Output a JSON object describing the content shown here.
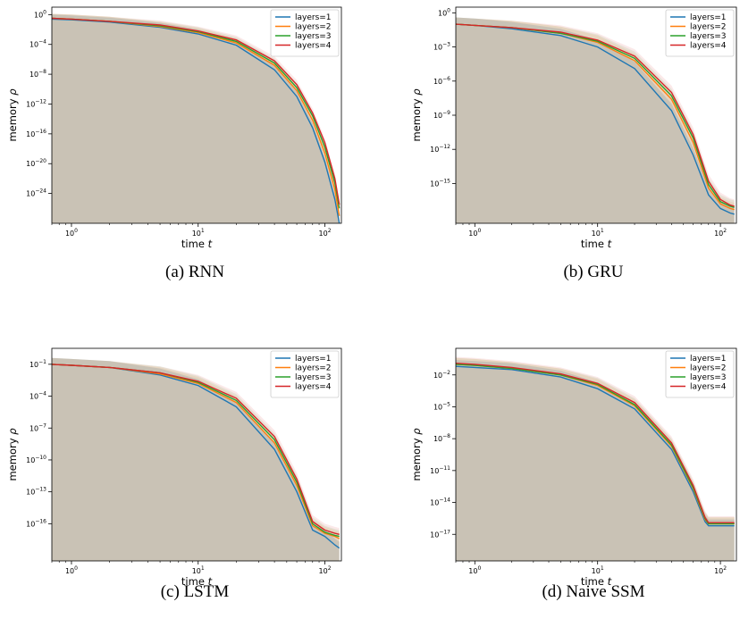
{
  "chart_data": [
    {
      "panel": "RNN",
      "caption": "(a) RNN",
      "type": "line",
      "xscale": "log",
      "yscale": "log",
      "xlim": [
        0.7,
        135
      ],
      "ylim_exp": [
        -28,
        1
      ],
      "xlabel": "time t",
      "ylabel": "memory ρ",
      "xticks": [
        {
          "exp": 0,
          "label": "10^0"
        },
        {
          "exp": 1,
          "label": "10^1"
        },
        {
          "exp": 2,
          "label": "10^2"
        }
      ],
      "yticks": [
        0,
        -4,
        -8,
        -12,
        -16,
        -20,
        -24
      ],
      "legend_position": "top-right",
      "series": [
        {
          "name": "layers=1",
          "color": "#1f77b4",
          "x": [
            0.7,
            1,
            2,
            5,
            10,
            20,
            40,
            60,
            80,
            100,
            120,
            130
          ],
          "log10_y": [
            -0.6,
            -0.7,
            -1.0,
            -1.7,
            -2.6,
            -4.1,
            -7.4,
            -11.0,
            -15.2,
            -19.8,
            -24.8,
            -28.0
          ]
        },
        {
          "name": "layers=2",
          "color": "#ff7f0e",
          "x": [
            0.7,
            1,
            2,
            5,
            10,
            20,
            40,
            60,
            80,
            100,
            120,
            130
          ],
          "log10_y": [
            -0.5,
            -0.6,
            -0.9,
            -1.6,
            -2.4,
            -3.8,
            -6.8,
            -10.2,
            -14.2,
            -18.6,
            -23.5,
            -27.0
          ]
        },
        {
          "name": "layers=3",
          "color": "#2ca02c",
          "x": [
            0.7,
            1,
            2,
            5,
            10,
            20,
            40,
            60,
            80,
            100,
            120,
            130
          ],
          "log10_y": [
            -0.5,
            -0.6,
            -0.9,
            -1.5,
            -2.3,
            -3.6,
            -6.5,
            -9.8,
            -13.6,
            -17.8,
            -22.6,
            -26.0
          ]
        },
        {
          "name": "layers=4",
          "color": "#d62728",
          "x": [
            0.7,
            1,
            2,
            5,
            10,
            20,
            40,
            60,
            80,
            100,
            120,
            130
          ],
          "log10_y": [
            -0.5,
            -0.6,
            -0.9,
            -1.4,
            -2.2,
            -3.4,
            -6.2,
            -9.4,
            -13.2,
            -17.2,
            -22.0,
            -25.5
          ]
        }
      ]
    },
    {
      "panel": "GRU",
      "caption": "(b) GRU",
      "type": "line",
      "xscale": "log",
      "yscale": "log",
      "xlim": [
        0.7,
        135
      ],
      "ylim_exp": [
        -18.5,
        0.5
      ],
      "xlabel": "time t",
      "ylabel": "memory ρ",
      "xticks": [
        {
          "exp": 0,
          "label": "10^0"
        },
        {
          "exp": 1,
          "label": "10^1"
        },
        {
          "exp": 2,
          "label": "10^2"
        }
      ],
      "yticks": [
        0,
        -3,
        -6,
        -9,
        -12,
        -15
      ],
      "legend_position": "top-right",
      "series": [
        {
          "name": "layers=1",
          "color": "#1f77b4",
          "x": [
            0.7,
            1,
            2,
            5,
            10,
            20,
            40,
            60,
            80,
            100,
            120,
            130
          ],
          "log10_y": [
            -1.0,
            -1.1,
            -1.4,
            -2.0,
            -3.0,
            -4.9,
            -8.6,
            -12.5,
            -16.0,
            -17.2,
            -17.6,
            -17.7
          ]
        },
        {
          "name": "layers=2",
          "color": "#ff7f0e",
          "x": [
            0.7,
            1,
            2,
            5,
            10,
            20,
            40,
            60,
            80,
            100,
            120,
            130
          ],
          "log10_y": [
            -1.0,
            -1.1,
            -1.3,
            -1.8,
            -2.6,
            -4.2,
            -7.6,
            -11.4,
            -15.4,
            -16.8,
            -17.2,
            -17.3
          ]
        },
        {
          "name": "layers=3",
          "color": "#2ca02c",
          "x": [
            0.7,
            1,
            2,
            5,
            10,
            20,
            40,
            60,
            80,
            100,
            120,
            130
          ],
          "log10_y": [
            -1.0,
            -1.1,
            -1.3,
            -1.8,
            -2.5,
            -4.0,
            -7.3,
            -11.0,
            -15.1,
            -16.6,
            -17.0,
            -17.1
          ]
        },
        {
          "name": "layers=4",
          "color": "#d62728",
          "x": [
            0.7,
            1,
            2,
            5,
            10,
            20,
            40,
            60,
            80,
            100,
            120,
            130
          ],
          "log10_y": [
            -1.0,
            -1.1,
            -1.3,
            -1.7,
            -2.4,
            -3.8,
            -7.0,
            -10.7,
            -14.8,
            -16.4,
            -16.9,
            -17.0
          ]
        }
      ]
    },
    {
      "panel": "LSTM",
      "caption": "(c) LSTM",
      "type": "line",
      "xscale": "log",
      "yscale": "log",
      "xlim": [
        0.7,
        135
      ],
      "ylim_exp": [
        -19.5,
        0.5
      ],
      "xlabel": "time t",
      "ylabel": "memory ρ",
      "xticks": [
        {
          "exp": 0,
          "label": "10^0"
        },
        {
          "exp": 1,
          "label": "10^1"
        },
        {
          "exp": 2,
          "label": "10^2"
        }
      ],
      "yticks": [
        -1,
        -4,
        -7,
        -10,
        -13,
        -16
      ],
      "legend_position": "top-right",
      "series": [
        {
          "name": "layers=1",
          "color": "#1f77b4",
          "x": [
            0.7,
            1,
            2,
            5,
            10,
            20,
            40,
            60,
            80,
            100,
            120,
            130
          ],
          "log10_y": [
            -1.0,
            -1.1,
            -1.3,
            -2.0,
            -3.0,
            -5.0,
            -9.0,
            -13.0,
            -16.6,
            -17.2,
            -18.0,
            -18.3
          ]
        },
        {
          "name": "layers=2",
          "color": "#ff7f0e",
          "x": [
            0.7,
            1,
            2,
            5,
            10,
            20,
            40,
            60,
            80,
            100,
            120,
            130
          ],
          "log10_y": [
            -1.0,
            -1.1,
            -1.3,
            -1.9,
            -2.8,
            -4.6,
            -8.4,
            -12.4,
            -16.2,
            -16.9,
            -17.2,
            -17.4
          ]
        },
        {
          "name": "layers=3",
          "color": "#2ca02c",
          "x": [
            0.7,
            1,
            2,
            5,
            10,
            20,
            40,
            60,
            80,
            100,
            120,
            130
          ],
          "log10_y": [
            -1.0,
            -1.1,
            -1.3,
            -1.8,
            -2.7,
            -4.4,
            -8.1,
            -12.1,
            -16.0,
            -16.8,
            -17.1,
            -17.2
          ]
        },
        {
          "name": "layers=4",
          "color": "#d62728",
          "x": [
            0.7,
            1,
            2,
            5,
            10,
            20,
            40,
            60,
            80,
            100,
            120,
            130
          ],
          "log10_y": [
            -1.0,
            -1.1,
            -1.3,
            -1.8,
            -2.6,
            -4.2,
            -7.8,
            -11.8,
            -15.8,
            -16.6,
            -16.9,
            -17.0
          ]
        }
      ]
    },
    {
      "panel": "Naive SSM",
      "caption": "(d) Naive SSM",
      "type": "line",
      "xscale": "log",
      "yscale": "log",
      "xlim": [
        0.7,
        135
      ],
      "ylim_exp": [
        -19.5,
        0.5
      ],
      "xlabel": "time t",
      "ylabel": "memory ρ",
      "xticks": [
        {
          "exp": 0,
          "label": "10^0"
        },
        {
          "exp": 1,
          "label": "10^1"
        },
        {
          "exp": 2,
          "label": "10^2"
        }
      ],
      "yticks": [
        -2,
        -5,
        -8,
        -11,
        -14,
        -17
      ],
      "legend_position": "top-right",
      "series": [
        {
          "name": "layers=1",
          "color": "#1f77b4",
          "x": [
            0.7,
            1,
            2,
            5,
            10,
            20,
            40,
            60,
            75,
            80,
            100,
            130
          ],
          "log10_y": [
            -1.2,
            -1.3,
            -1.5,
            -2.2,
            -3.3,
            -5.2,
            -9.0,
            -13.0,
            -15.8,
            -16.2,
            -16.2,
            -16.2
          ]
        },
        {
          "name": "layers=2",
          "color": "#ff7f0e",
          "x": [
            0.7,
            1,
            2,
            5,
            10,
            20,
            40,
            60,
            75,
            80,
            100,
            130
          ],
          "log10_y": [
            -1.0,
            -1.1,
            -1.4,
            -2.0,
            -3.0,
            -4.9,
            -8.7,
            -12.7,
            -15.6,
            -16.0,
            -16.0,
            -16.0
          ]
        },
        {
          "name": "layers=3",
          "color": "#2ca02c",
          "x": [
            0.7,
            1,
            2,
            5,
            10,
            20,
            40,
            60,
            75,
            80,
            100,
            130
          ],
          "log10_y": [
            -1.0,
            -1.1,
            -1.4,
            -2.0,
            -2.9,
            -4.8,
            -8.6,
            -12.6,
            -15.5,
            -16.0,
            -16.0,
            -16.0
          ]
        },
        {
          "name": "layers=4",
          "color": "#d62728",
          "x": [
            0.7,
            1,
            2,
            5,
            10,
            20,
            40,
            60,
            75,
            80,
            100,
            130
          ],
          "log10_y": [
            -0.9,
            -1.0,
            -1.3,
            -1.9,
            -2.8,
            -4.6,
            -8.4,
            -12.4,
            -15.4,
            -15.9,
            -15.9,
            -15.9
          ]
        }
      ]
    }
  ]
}
